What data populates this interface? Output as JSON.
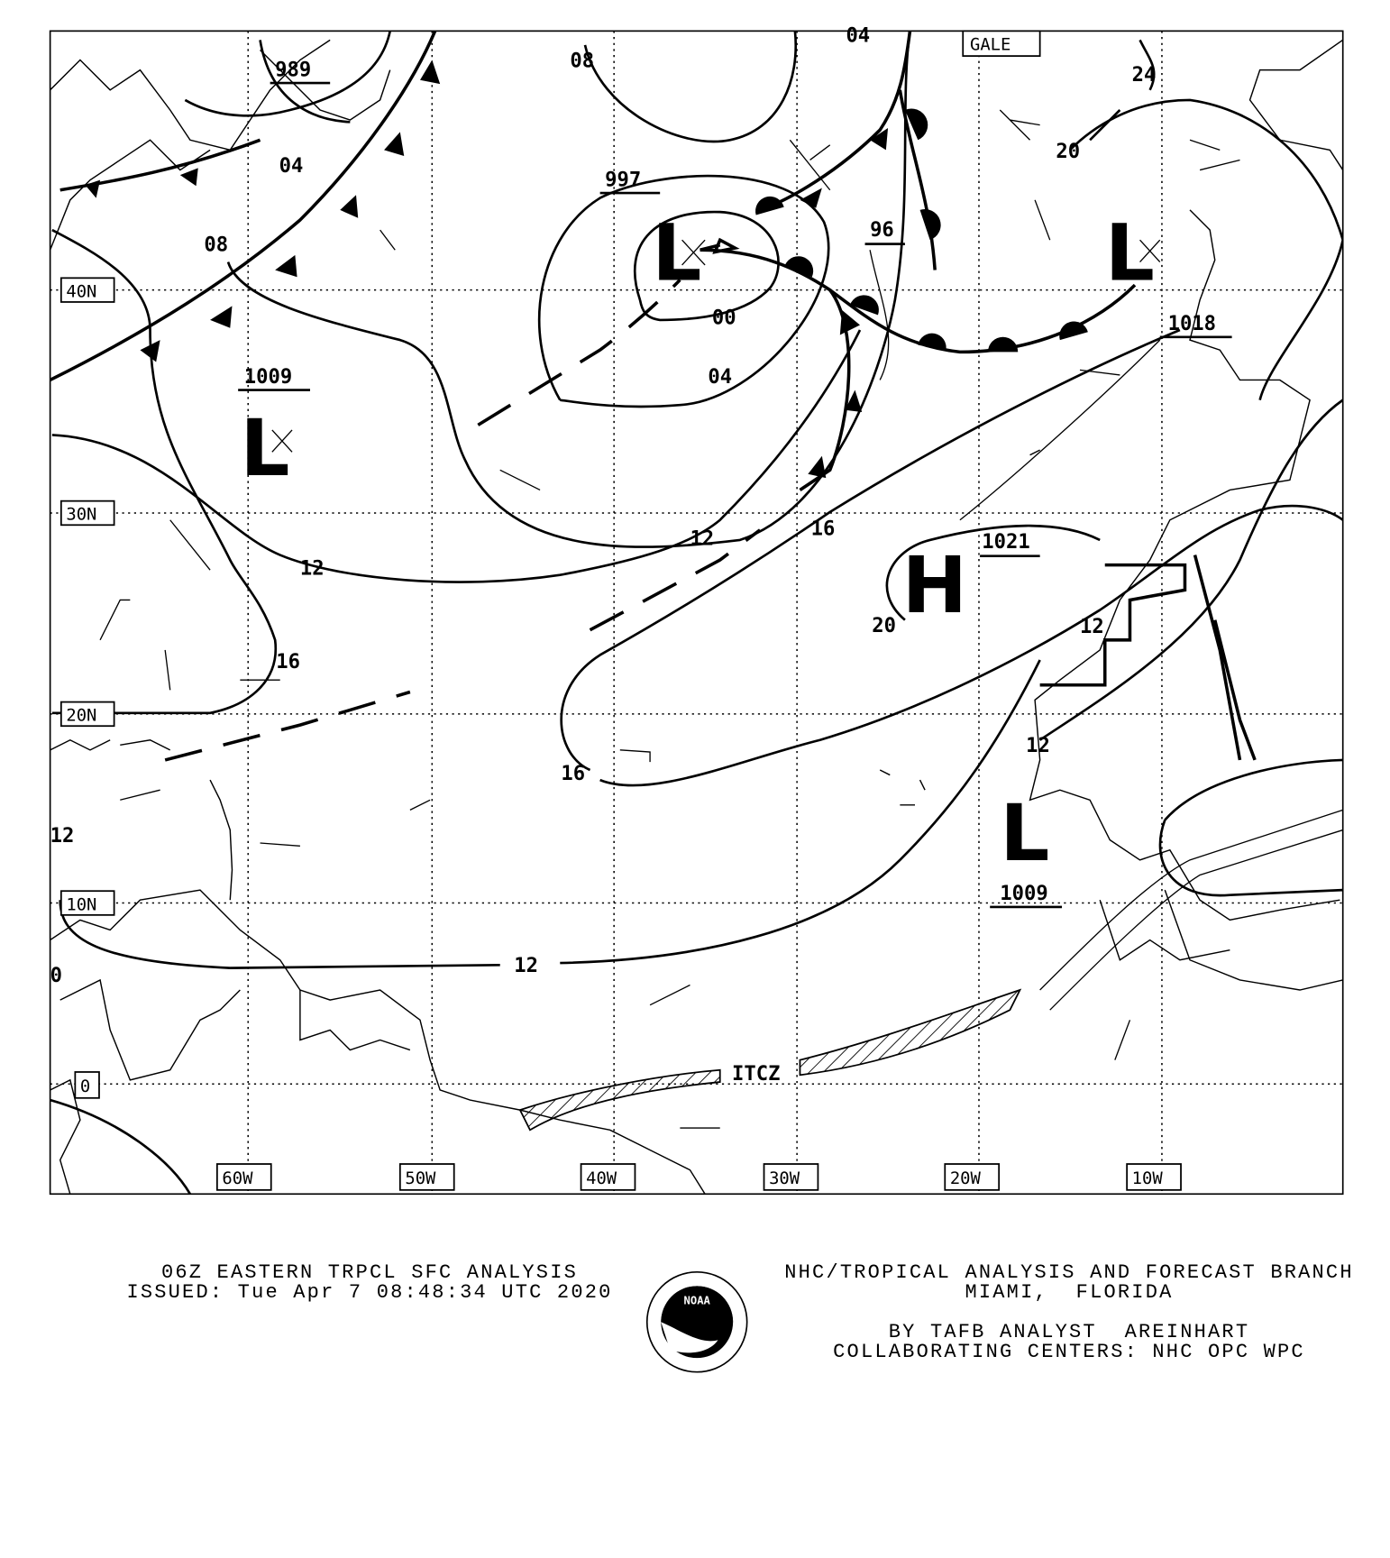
{
  "map": {
    "lat_labels": [
      "40N",
      "30N",
      "20N",
      "10N",
      "0"
    ],
    "lon_labels": [
      "60W",
      "50W",
      "40W",
      "30W",
      "20W",
      "10W"
    ],
    "gale_label": "GALE",
    "itcz_label": "ITCZ",
    "isobar_labels": [
      "08",
      "04",
      "08",
      "04",
      "00",
      "04",
      "12",
      "12",
      "16",
      "16",
      "12",
      "16",
      "12",
      "12",
      "96",
      "24",
      "20",
      "20",
      "12",
      "0"
    ],
    "centers": [
      {
        "symbol": "L",
        "pressure": "997"
      },
      {
        "symbol": "L",
        "pressure": "1009"
      },
      {
        "symbol": "L",
        "pressure": "1018"
      },
      {
        "symbol": "H",
        "pressure": "1021"
      },
      {
        "symbol": "L",
        "pressure": "1009"
      },
      {
        "symbol": "L",
        "pressure": "989"
      }
    ]
  },
  "footer": {
    "title": "06Z EASTERN TRPCL SFC ANALYSIS",
    "issued": "ISSUED: Tue Apr 7 08:48:34 UTC 2020",
    "branch": "NHC/TROPICAL ANALYSIS AND FORECAST BRANCH",
    "location": "MIAMI,  FLORIDA",
    "analyst": "BY TAFB ANALYST  AREINHART",
    "centers": "COLLABORATING CENTERS: NHC OPC WPC",
    "logo_text": "NOAA"
  }
}
